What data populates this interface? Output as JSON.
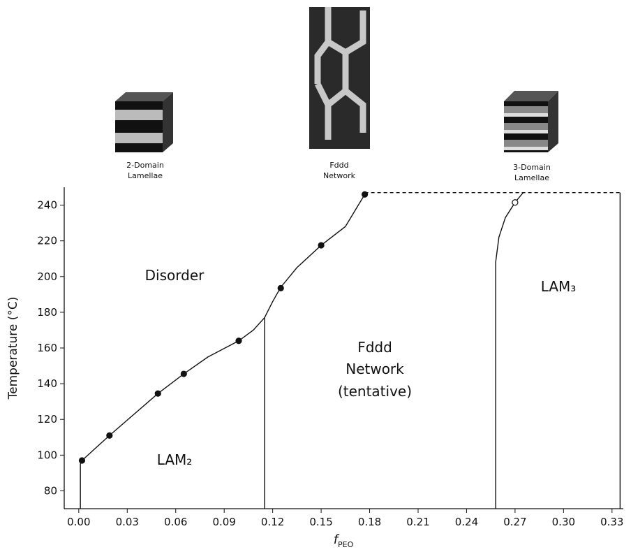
{
  "chart_data": {
    "type": "line",
    "y_label": "Temperature (°C)",
    "x_label": "f",
    "x_label_subscript": "PEO",
    "annotations": [
      "Disorder",
      "Fddd",
      "Network",
      "(tentative)",
      "LAM₂",
      "LAM₃"
    ],
    "illustrations": [
      [
        "2-Domain",
        "Lamellae"
      ],
      [
        "Fddd",
        "Network"
      ],
      [
        "3-Domain",
        "Lamellae"
      ]
    ],
    "xlim": [
      -0.009,
      0.337
    ],
    "ylim": [
      70,
      250
    ],
    "xticks": [
      {
        "value": 0,
        "label": "0.00"
      },
      0.03,
      0.06,
      0.09,
      0.12,
      0.15,
      0.18,
      0.21,
      0.24,
      0.27,
      {
        "value": 0.3,
        "label": "0.30"
      },
      0.33
    ],
    "yticks": [
      80,
      100,
      120,
      140,
      160,
      180,
      200,
      220,
      240
    ],
    "series": [
      {
        "mode": "line",
        "color": "#111",
        "dash": false,
        "x": [
          0.001,
          0.001,
          0.002,
          0.019,
          0.049,
          0.065,
          0.08,
          0.099,
          0.108,
          0.115,
          0.12,
          0.125,
          0.135,
          0.15,
          0.165,
          0.177
        ],
        "values": [
          70,
          95,
          97,
          111,
          134.5,
          145.5,
          155,
          164,
          170,
          177,
          186,
          194,
          205,
          217.5,
          228,
          246
        ]
      },
      {
        "mode": "line",
        "color": "#111",
        "dash": false,
        "x": [
          0.115,
          0.115
        ],
        "values": [
          70,
          177
        ]
      },
      {
        "mode": "line",
        "color": "#111",
        "dash": false,
        "x": [
          0.258,
          0.258,
          0.26,
          0.264,
          0.27,
          0.275
        ],
        "values": [
          70,
          208,
          222,
          233,
          241.5,
          247
        ]
      },
      {
        "mode": "line",
        "color": "#111",
        "dash": true,
        "x": [
          0.177,
          0.335
        ],
        "values": [
          247,
          247
        ]
      },
      {
        "mode": "line",
        "color": "#111",
        "dash": false,
        "x": [
          0.335,
          0.335
        ],
        "values": [
          70,
          247
        ]
      },
      {
        "mode": "markers",
        "color": "#111",
        "filled": true,
        "x": [
          0.002,
          0.019,
          0.049,
          0.065,
          0.099,
          0.125,
          0.15,
          0.177
        ],
        "values": [
          97,
          111,
          134.5,
          145.5,
          164,
          193.5,
          217.5,
          246
        ]
      },
      {
        "mode": "markers",
        "color": "#111",
        "filled": false,
        "x": [
          0.27
        ],
        "values": [
          241.5
        ]
      }
    ]
  }
}
